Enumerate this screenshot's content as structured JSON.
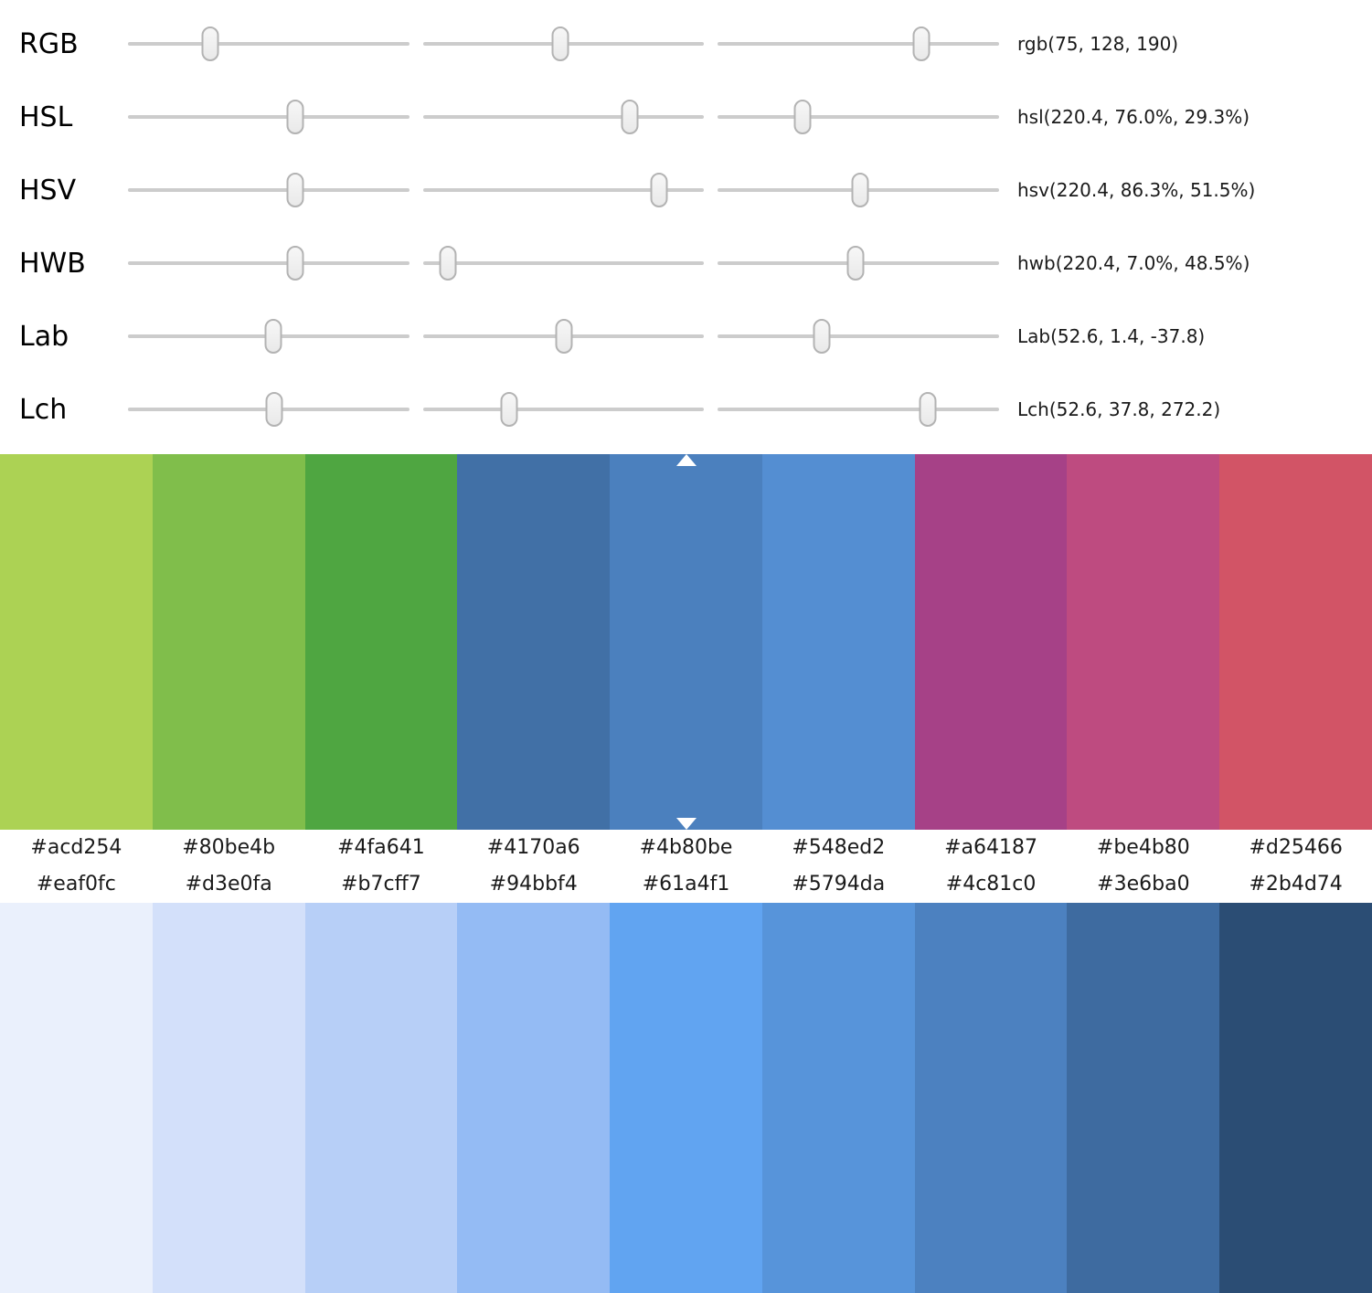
{
  "slider_rows": [
    {
      "label": "RGB",
      "value": "rgb(75, 128, 190)",
      "thumbs": [
        29.2,
        49.0,
        72.3
      ]
    },
    {
      "label": "HSL",
      "value": "hsl(220.4, 76.0%, 29.3%)",
      "thumbs": [
        59.4,
        73.7,
        30.0
      ]
    },
    {
      "label": "HSV",
      "value": "hsv(220.4, 86.3%, 51.5%)",
      "thumbs": [
        59.4,
        83.8,
        50.5
      ]
    },
    {
      "label": "HWB",
      "value": "hwb(220.4, 7.0%, 48.5%)",
      "thumbs": [
        59.4,
        8.8,
        48.9
      ]
    },
    {
      "label": "Lab",
      "value": "Lab(52.6, 1.4, -37.8)",
      "thumbs": [
        51.6,
        50.3,
        36.8
      ]
    },
    {
      "label": "Lch",
      "value": "Lch(52.6, 37.8, 272.2)",
      "thumbs": [
        51.9,
        30.5,
        74.6
      ]
    }
  ],
  "palette_top": {
    "selected_index": 4,
    "swatches": [
      "#acd254",
      "#80be4b",
      "#4fa641",
      "#4170a6",
      "#4b80be",
      "#548ed2",
      "#a64187",
      "#be4b80",
      "#d25466"
    ]
  },
  "palette_bottom": {
    "swatches": [
      "#eaf0fc",
      "#d3e0fa",
      "#b7cff7",
      "#94bbf4",
      "#61a4f1",
      "#5794da",
      "#4c81c0",
      "#3e6ba0",
      "#2b4d74"
    ]
  },
  "colors": {
    "track": "#cccccc",
    "marker": "#ffffff",
    "text": "#1a1a1a"
  }
}
